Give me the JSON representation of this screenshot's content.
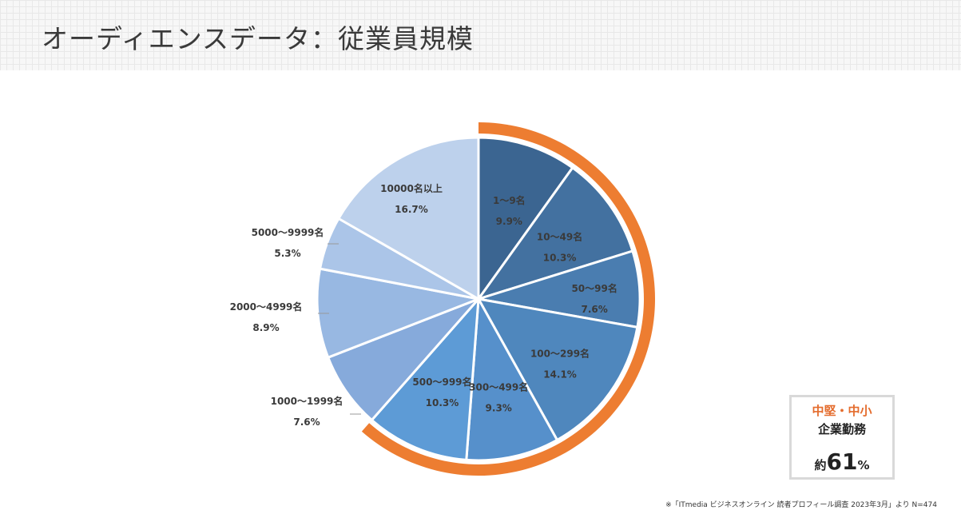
{
  "slide": {
    "title": "オーディエンスデータ：従業員規模",
    "footnote": "※「ITmedia ビジネスオンライン 読者プロフィール調査 2023年3月」より N=474"
  },
  "callout": {
    "line1": "中堅・中小",
    "line2": "企業勤務",
    "prefix": "約",
    "number": "61",
    "suffix": "%"
  },
  "chart_data": {
    "type": "pie",
    "title": "",
    "start": "top",
    "direction": "clockwise",
    "slices": [
      {
        "label": "1〜9名",
        "value": 9.9,
        "display": "9.9%",
        "color": "#3b6591"
      },
      {
        "label": "10〜49名",
        "value": 10.3,
        "display": "10.3%",
        "color": "#4371a0"
      },
      {
        "label": "50〜99名",
        "value": 7.6,
        "display": "7.6%",
        "color": "#4a7db0"
      },
      {
        "label": "100〜299名",
        "value": 14.1,
        "display": "14.1%",
        "color": "#4f87bd"
      },
      {
        "label": "300〜499名",
        "value": 9.3,
        "display": "9.3%",
        "color": "#5690cb"
      },
      {
        "label": "500〜999名",
        "value": 10.3,
        "display": "10.3%",
        "color": "#5d9bd6"
      },
      {
        "label": "1000〜1999名",
        "value": 7.6,
        "display": "7.6%",
        "color": "#86aadb"
      },
      {
        "label": "2000〜4999名",
        "value": 8.9,
        "display": "8.9%",
        "color": "#98b8e2"
      },
      {
        "label": "5000〜9999名",
        "value": 5.3,
        "display": "5.3%",
        "color": "#abc5e8"
      },
      {
        "label": "10000名以上",
        "value": 16.7,
        "display": "16.7%",
        "color": "#bdd1ec"
      }
    ],
    "highlight": {
      "slices": [
        "1〜9名",
        "10〜49名",
        "50〜99名",
        "100〜299名",
        "300〜499名",
        "500〜999名"
      ],
      "color": "#ed7d31"
    }
  }
}
